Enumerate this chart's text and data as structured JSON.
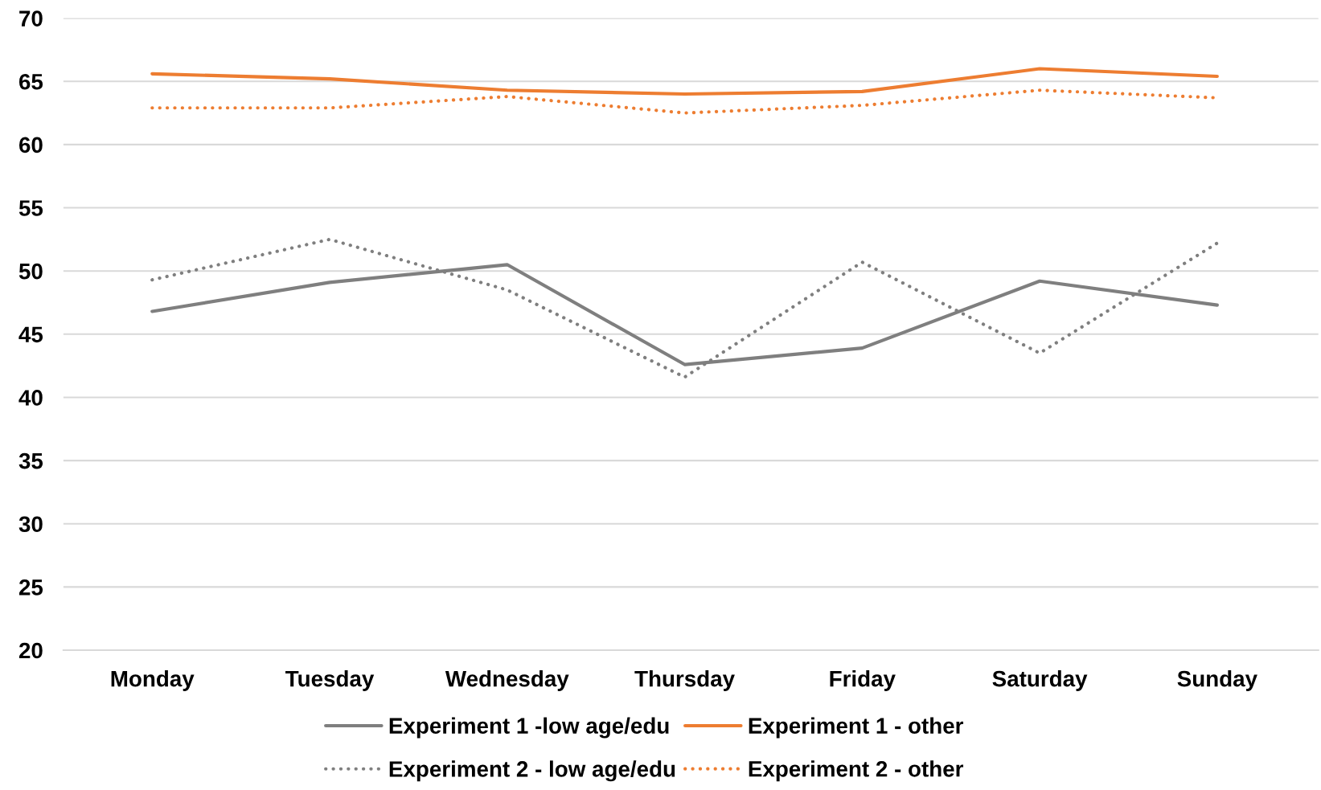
{
  "chart_data": {
    "type": "line",
    "categories": [
      "Monday",
      "Tuesday",
      "Wednesday",
      "Thursday",
      "Friday",
      "Saturday",
      "Sunday"
    ],
    "series": [
      {
        "name": "Experiment 1 -low age/edu",
        "color": "#7f7f7f",
        "line_style": "solid",
        "values": [
          46.8,
          49.1,
          50.5,
          42.6,
          43.9,
          49.2,
          47.3
        ]
      },
      {
        "name": "Experiment 1 - other",
        "color": "#ed7d31",
        "line_style": "solid",
        "values": [
          65.6,
          65.2,
          64.3,
          64.0,
          64.2,
          66.0,
          65.4
        ]
      },
      {
        "name": "Experiment 2 - low age/edu",
        "color": "#7f7f7f",
        "line_style": "dotted",
        "values": [
          49.3,
          52.5,
          48.5,
          41.6,
          50.7,
          43.5,
          52.2
        ]
      },
      {
        "name": "Experiment 2 - other",
        "color": "#ed7d31",
        "line_style": "dotted",
        "values": [
          62.9,
          62.9,
          63.8,
          62.5,
          63.1,
          64.3,
          63.7
        ]
      }
    ],
    "ylim": [
      20,
      70
    ],
    "yticks": [
      20,
      25,
      30,
      35,
      40,
      45,
      50,
      55,
      60,
      65,
      70
    ],
    "grid": "y",
    "legend": "bottom"
  }
}
